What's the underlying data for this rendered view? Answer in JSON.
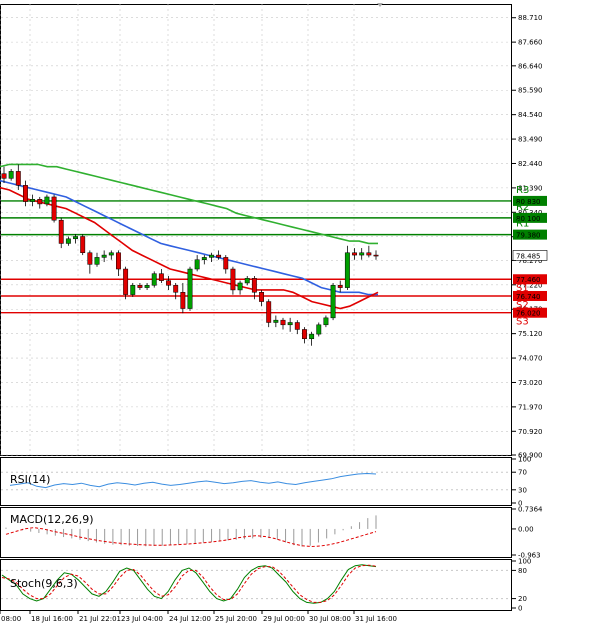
{
  "chart_data": {
    "type": "candlestick",
    "instrument_price": "78.485",
    "colors": {
      "up": "#00a000",
      "down": "#e00000",
      "ma_fast": "#e00000",
      "ma_mid": "#3060e0",
      "ma_slow": "#30b030",
      "resistance": "#008000",
      "support": "#e00000",
      "grid": "#c8c8c8",
      "rsi": "#3a8de0",
      "macd_signal": "#e00000",
      "stoch_main": "#008000",
      "stoch_signal": "#e00000"
    },
    "y_ticks": [
      "88.710",
      "87.660",
      "86.640",
      "85.590",
      "84.540",
      "83.490",
      "82.440",
      "81.390",
      "80.340",
      "79.290",
      "78.270",
      "77.220",
      "76.170",
      "75.120",
      "74.070",
      "73.020",
      "71.970",
      "70.920",
      "69.900"
    ],
    "x_ticks": [
      "08:00",
      "18 Jul 16:00",
      "21 Jul 22:01",
      "23 Jul 04:00",
      "24 Jul 12:00",
      "25 Jul 20:00",
      "29 Jul 00:00",
      "30 Jul 08:00",
      "31 Jul 16:00"
    ],
    "levels": [
      {
        "name": "R3",
        "value": 80.83,
        "label": "80.830",
        "kind": "resistance"
      },
      {
        "name": "R2",
        "value": 80.1,
        "label": "80.100",
        "kind": "resistance"
      },
      {
        "name": "R1",
        "value": 79.38,
        "label": "79.380",
        "kind": "resistance"
      },
      {
        "name": "S1",
        "value": 77.46,
        "label": "77.460",
        "kind": "support"
      },
      {
        "name": "S2",
        "value": 76.74,
        "label": "76.740",
        "kind": "support"
      },
      {
        "name": "S3",
        "value": 76.02,
        "label": "76.020",
        "kind": "support"
      }
    ],
    "candles": [
      {
        "o": 82.0,
        "h": 82.3,
        "l": 81.6,
        "c": 81.8
      },
      {
        "o": 81.8,
        "h": 82.2,
        "l": 81.7,
        "c": 82.1
      },
      {
        "o": 82.1,
        "h": 82.4,
        "l": 81.3,
        "c": 81.5
      },
      {
        "o": 81.5,
        "h": 81.7,
        "l": 80.6,
        "c": 80.8
      },
      {
        "o": 80.8,
        "h": 81.1,
        "l": 80.6,
        "c": 80.9
      },
      {
        "o": 80.9,
        "h": 81.0,
        "l": 80.5,
        "c": 80.7
      },
      {
        "o": 80.7,
        "h": 81.1,
        "l": 80.6,
        "c": 81.0
      },
      {
        "o": 81.0,
        "h": 81.1,
        "l": 79.9,
        "c": 80.0
      },
      {
        "o": 80.0,
        "h": 80.1,
        "l": 78.8,
        "c": 79.0
      },
      {
        "o": 79.0,
        "h": 79.3,
        "l": 78.9,
        "c": 79.2
      },
      {
        "o": 79.2,
        "h": 79.4,
        "l": 79.0,
        "c": 79.3
      },
      {
        "o": 79.3,
        "h": 79.4,
        "l": 78.5,
        "c": 78.6
      },
      {
        "o": 78.6,
        "h": 78.7,
        "l": 77.7,
        "c": 78.1
      },
      {
        "o": 78.1,
        "h": 78.6,
        "l": 78.0,
        "c": 78.4
      },
      {
        "o": 78.4,
        "h": 78.7,
        "l": 78.2,
        "c": 78.5
      },
      {
        "o": 78.5,
        "h": 78.7,
        "l": 78.3,
        "c": 78.6
      },
      {
        "o": 78.6,
        "h": 78.7,
        "l": 77.6,
        "c": 77.9
      },
      {
        "o": 77.9,
        "h": 78.0,
        "l": 76.6,
        "c": 76.8
      },
      {
        "o": 76.8,
        "h": 77.3,
        "l": 76.7,
        "c": 77.2
      },
      {
        "o": 77.2,
        "h": 77.3,
        "l": 77.0,
        "c": 77.1
      },
      {
        "o": 77.1,
        "h": 77.3,
        "l": 77.0,
        "c": 77.2
      },
      {
        "o": 77.2,
        "h": 77.8,
        "l": 77.1,
        "c": 77.7
      },
      {
        "o": 77.7,
        "h": 77.9,
        "l": 77.3,
        "c": 77.4
      },
      {
        "o": 77.4,
        "h": 77.6,
        "l": 77.0,
        "c": 77.2
      },
      {
        "o": 77.2,
        "h": 77.3,
        "l": 76.6,
        "c": 76.9
      },
      {
        "o": 76.9,
        "h": 77.3,
        "l": 76.0,
        "c": 76.2
      },
      {
        "o": 76.2,
        "h": 78.0,
        "l": 76.1,
        "c": 77.9
      },
      {
        "o": 77.9,
        "h": 78.5,
        "l": 77.8,
        "c": 78.3
      },
      {
        "o": 78.3,
        "h": 78.5,
        "l": 78.1,
        "c": 78.4
      },
      {
        "o": 78.4,
        "h": 78.6,
        "l": 78.2,
        "c": 78.5
      },
      {
        "o": 78.5,
        "h": 78.7,
        "l": 78.3,
        "c": 78.4
      },
      {
        "o": 78.4,
        "h": 78.5,
        "l": 77.7,
        "c": 77.9
      },
      {
        "o": 77.9,
        "h": 78.0,
        "l": 76.8,
        "c": 77.0
      },
      {
        "o": 77.0,
        "h": 77.4,
        "l": 76.8,
        "c": 77.3
      },
      {
        "o": 77.3,
        "h": 77.6,
        "l": 77.2,
        "c": 77.5
      },
      {
        "o": 77.5,
        "h": 77.6,
        "l": 76.6,
        "c": 76.9
      },
      {
        "o": 76.9,
        "h": 77.0,
        "l": 76.3,
        "c": 76.5
      },
      {
        "o": 76.5,
        "h": 76.6,
        "l": 75.4,
        "c": 75.6
      },
      {
        "o": 75.6,
        "h": 75.9,
        "l": 75.4,
        "c": 75.7
      },
      {
        "o": 75.7,
        "h": 75.8,
        "l": 75.3,
        "c": 75.5
      },
      {
        "o": 75.5,
        "h": 75.8,
        "l": 75.2,
        "c": 75.6
      },
      {
        "o": 75.6,
        "h": 75.7,
        "l": 75.1,
        "c": 75.3
      },
      {
        "o": 75.3,
        "h": 75.4,
        "l": 74.7,
        "c": 74.9
      },
      {
        "o": 74.9,
        "h": 75.2,
        "l": 74.6,
        "c": 75.1
      },
      {
        "o": 75.1,
        "h": 75.6,
        "l": 75.0,
        "c": 75.5
      },
      {
        "o": 75.5,
        "h": 75.9,
        "l": 75.4,
        "c": 75.8
      },
      {
        "o": 75.8,
        "h": 77.3,
        "l": 75.7,
        "c": 77.2
      },
      {
        "o": 77.2,
        "h": 77.4,
        "l": 76.9,
        "c": 77.1
      },
      {
        "o": 77.1,
        "h": 78.9,
        "l": 77.0,
        "c": 78.6
      },
      {
        "o": 78.6,
        "h": 78.8,
        "l": 78.3,
        "c": 78.5
      },
      {
        "o": 78.5,
        "h": 78.8,
        "l": 78.3,
        "c": 78.6
      },
      {
        "o": 78.6,
        "h": 78.9,
        "l": 78.4,
        "c": 78.5
      },
      {
        "o": 78.5,
        "h": 78.7,
        "l": 78.3,
        "c": 78.485
      }
    ],
    "ma_fast": [
      81.4,
      81.3,
      81.1,
      80.9,
      80.8,
      80.7,
      80.6,
      80.5,
      80.3,
      80.1,
      79.9,
      79.6,
      79.3,
      79.0,
      78.7,
      78.5,
      78.3,
      78.1,
      77.9,
      77.8,
      77.7,
      77.6,
      77.5,
      77.4,
      77.3,
      77.2,
      77.1,
      77.0,
      77.0,
      77.0,
      77.0,
      76.9,
      76.7,
      76.5,
      76.4,
      76.3,
      76.2,
      76.3,
      76.5,
      76.7,
      76.9
    ],
    "ma_mid": [
      81.7,
      81.6,
      81.5,
      81.4,
      81.3,
      81.2,
      81.1,
      81.0,
      80.8,
      80.6,
      80.4,
      80.2,
      80.0,
      79.8,
      79.6,
      79.4,
      79.2,
      79.0,
      78.9,
      78.8,
      78.7,
      78.6,
      78.5,
      78.4,
      78.3,
      78.2,
      78.1,
      78.0,
      77.9,
      77.8,
      77.7,
      77.6,
      77.5,
      77.3,
      77.1,
      77.0,
      76.9,
      76.9,
      76.9,
      76.8,
      76.8
    ],
    "ma_slow": [
      82.3,
      82.4,
      82.4,
      82.4,
      82.4,
      82.3,
      82.3,
      82.2,
      82.1,
      82.0,
      81.9,
      81.8,
      81.7,
      81.6,
      81.5,
      81.4,
      81.3,
      81.2,
      81.1,
      81.0,
      80.9,
      80.8,
      80.7,
      80.6,
      80.5,
      80.3,
      80.2,
      80.1,
      80.0,
      79.9,
      79.8,
      79.7,
      79.6,
      79.5,
      79.4,
      79.3,
      79.2,
      79.1,
      79.1,
      79.0,
      79.0
    ],
    "rsi": {
      "label": "RSI(14)",
      "ticks": [
        "100",
        "70",
        "30",
        "0"
      ],
      "values": [
        40,
        43,
        46,
        38,
        35,
        41,
        44,
        42,
        45,
        40,
        37,
        43,
        46,
        44,
        41,
        45,
        47,
        43,
        40,
        42,
        45,
        48,
        50,
        47,
        44,
        46,
        49,
        51,
        47,
        45,
        48,
        44,
        42,
        46,
        49,
        52,
        55,
        60,
        63,
        66,
        67,
        66
      ]
    },
    "macd": {
      "label": "MACD(12,26,9)",
      "ticks": [
        "0.7364",
        "0.00",
        "-0.963"
      ],
      "values": [
        0.05,
        0.0,
        -0.05,
        -0.1,
        -0.15,
        -0.2,
        -0.25,
        -0.3,
        -0.35,
        -0.4,
        -0.45,
        -0.5,
        -0.55,
        -0.58,
        -0.6,
        -0.62,
        -0.63,
        -0.64,
        -0.63,
        -0.62,
        -0.6,
        -0.58,
        -0.55,
        -0.52,
        -0.5,
        -0.48,
        -0.45,
        -0.42,
        -0.4,
        -0.38,
        -0.35,
        -0.33,
        -0.34,
        -0.4,
        -0.5,
        -0.6,
        -0.65,
        -0.62,
        -0.5,
        -0.35,
        -0.2,
        -0.05,
        0.1,
        0.25,
        0.4,
        0.5
      ],
      "signal": [
        -0.2,
        -0.1,
        0.0,
        0.05,
        0.0,
        -0.08,
        -0.15,
        -0.22,
        -0.3,
        -0.37,
        -0.43,
        -0.48,
        -0.52,
        -0.55,
        -0.57,
        -0.59,
        -0.6,
        -0.6,
        -0.59,
        -0.57,
        -0.55,
        -0.52,
        -0.49,
        -0.45,
        -0.4,
        -0.33,
        -0.28,
        -0.25,
        -0.28,
        -0.35,
        -0.45,
        -0.55,
        -0.62,
        -0.65,
        -0.63,
        -0.58,
        -0.5,
        -0.4,
        -0.3,
        -0.2,
        -0.1
      ]
    },
    "stoch": {
      "label": "Stoch(9,6,3)",
      "ticks": [
        "100",
        "80",
        "20",
        "0"
      ],
      "main": [
        70,
        60,
        50,
        30,
        20,
        15,
        20,
        40,
        60,
        75,
        72,
        60,
        45,
        30,
        25,
        35,
        55,
        78,
        85,
        80,
        60,
        40,
        25,
        20,
        35,
        60,
        80,
        85,
        75,
        55,
        35,
        20,
        15,
        20,
        40,
        65,
        80,
        88,
        90,
        85,
        70,
        55,
        35,
        20,
        12,
        10,
        12,
        20,
        35,
        60,
        82,
        90,
        92,
        90,
        88
      ],
      "signal": [
        65,
        62,
        55,
        40,
        28,
        20,
        20,
        30,
        48,
        65,
        72,
        68,
        55,
        40,
        30,
        30,
        45,
        65,
        80,
        82,
        70,
        52,
        35,
        25,
        28,
        45,
        68,
        80,
        80,
        66,
        45,
        28,
        18,
        18,
        30,
        52,
        72,
        84,
        88,
        88,
        78,
        62,
        45,
        28,
        18,
        12,
        12,
        16,
        28,
        48,
        70,
        85,
        90,
        91,
        89
      ]
    }
  }
}
